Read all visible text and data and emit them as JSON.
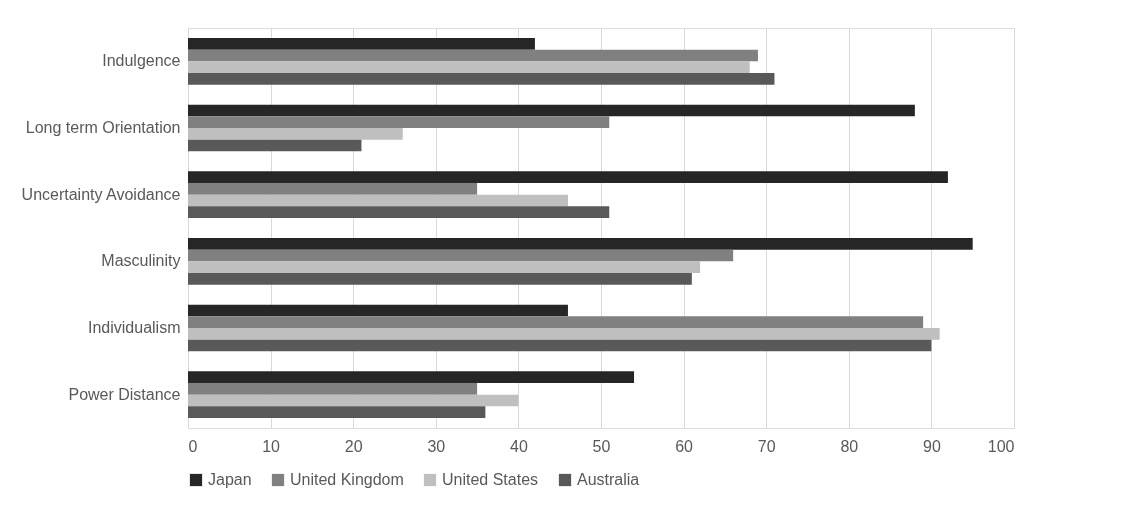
{
  "chart_data": {
    "type": "bar",
    "orientation": "horizontal",
    "categories": [
      "Indulgence",
      "Long term Orientation",
      "Uncertainty Avoidance",
      "Masculinity",
      "Individualism",
      "Power Distance"
    ],
    "series": [
      {
        "name": "Japan",
        "color": "#262626",
        "values": [
          42,
          88,
          92,
          95,
          46,
          54
        ]
      },
      {
        "name": "United Kingdom",
        "color": "#808080",
        "values": [
          69,
          51,
          35,
          66,
          89,
          35
        ]
      },
      {
        "name": "United States",
        "color": "#bfbfbf",
        "values": [
          68,
          26,
          46,
          62,
          91,
          40
        ]
      },
      {
        "name": "Australia",
        "color": "#595959",
        "values": [
          71,
          21,
          51,
          61,
          90,
          36
        ]
      }
    ],
    "xlim": [
      0,
      100
    ],
    "xticks": [
      0,
      10,
      20,
      30,
      40,
      50,
      60,
      70,
      80,
      90,
      100
    ],
    "grid": "x",
    "legend": "bottom"
  }
}
